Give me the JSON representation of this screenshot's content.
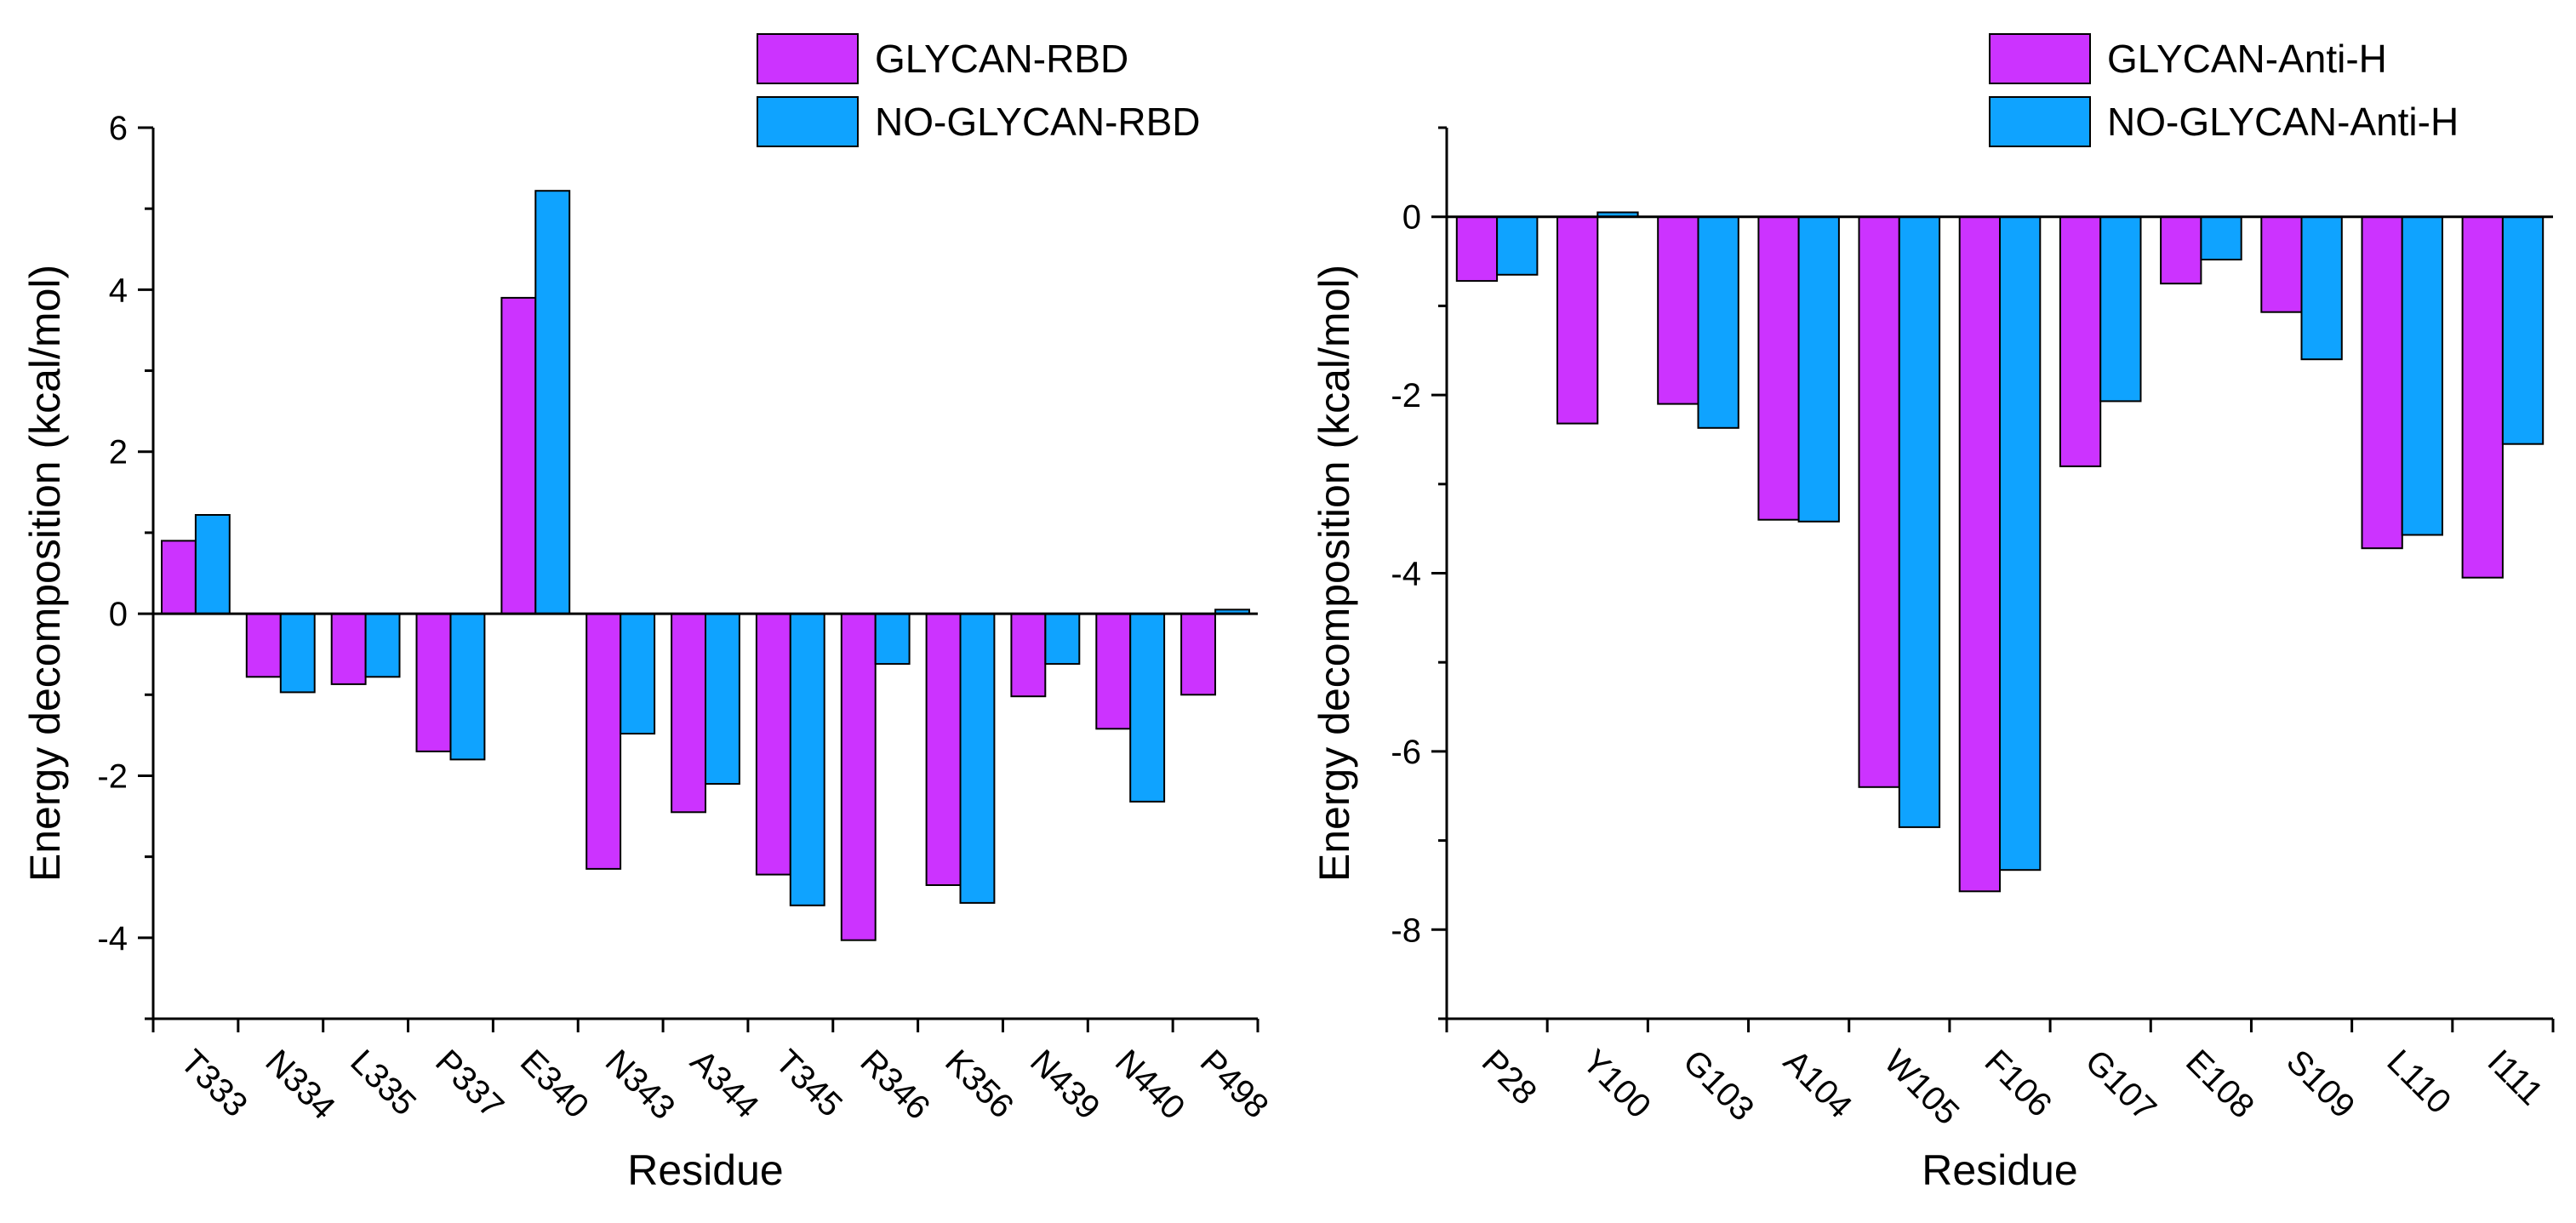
{
  "chart_data": [
    {
      "type": "bar",
      "title": "",
      "xlabel": "Residue",
      "ylabel": "Energy decomposition (kcal/mol)",
      "ylim": [
        -5,
        6
      ],
      "yticks": [
        -4,
        -2,
        0,
        2,
        4,
        6
      ],
      "legend_position": "top-right",
      "categories": [
        "T333",
        "N334",
        "L335",
        "P337",
        "E340",
        "N343",
        "A344",
        "T345",
        "R346",
        "K356",
        "N439",
        "N440",
        "P498"
      ],
      "series": [
        {
          "name": "GLYCAN-RBD",
          "color": "#CC33FF",
          "values": [
            0.9,
            -0.78,
            -0.87,
            -1.7,
            3.9,
            -3.15,
            -2.45,
            -3.22,
            -4.03,
            -3.35,
            -1.02,
            -1.42,
            -1.0
          ]
        },
        {
          "name": "NO-GLYCAN-RBD",
          "color": "#0FA3FF",
          "values": [
            1.22,
            -0.97,
            -0.78,
            -1.8,
            5.22,
            -1.48,
            -2.1,
            -3.6,
            -0.62,
            -3.57,
            -0.62,
            -2.32,
            0.05
          ]
        }
      ]
    },
    {
      "type": "bar",
      "title": "",
      "xlabel": "Residue",
      "ylabel": "Energy decomposition (kcal/mol)",
      "ylim": [
        -9,
        1
      ],
      "yticks": [
        -8,
        -6,
        -4,
        -2,
        0
      ],
      "legend_position": "top-right",
      "categories": [
        "P28",
        "Y100",
        "G103",
        "A104",
        "W105",
        "F106",
        "G107",
        "E108",
        "S109",
        "L110",
        "I111"
      ],
      "series": [
        {
          "name": "GLYCAN-Anti-H",
          "color": "#CC33FF",
          "values": [
            -0.72,
            -2.32,
            -2.1,
            -3.4,
            -6.4,
            -7.57,
            -2.8,
            -0.75,
            -1.07,
            -3.72,
            -4.05
          ]
        },
        {
          "name": "NO-GLYCAN-Anti-H",
          "color": "#0FA3FF",
          "values": [
            -0.65,
            0.05,
            -2.37,
            -3.42,
            -6.85,
            -7.33,
            -2.07,
            -0.48,
            -1.6,
            -3.57,
            -2.55
          ]
        }
      ]
    }
  ]
}
